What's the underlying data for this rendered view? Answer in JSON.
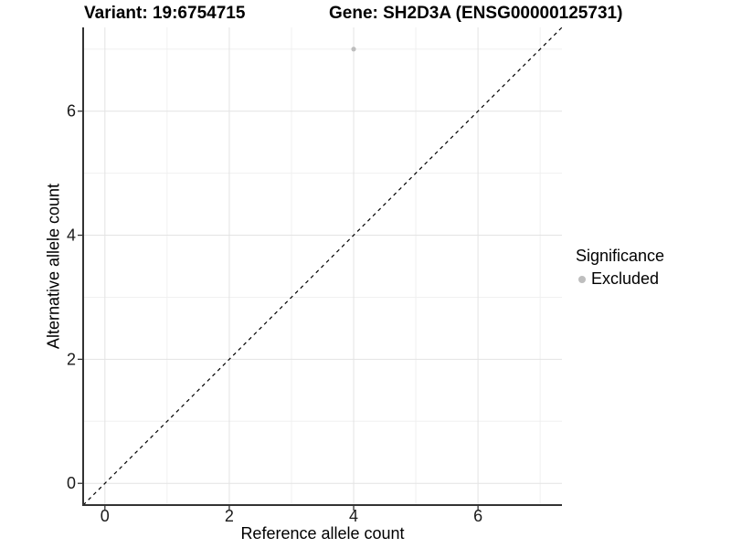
{
  "header": {
    "variant_title": "Variant: 19:6754715",
    "gene_title": "Gene: SH2D3A (ENSG00000125731)"
  },
  "chart_data": {
    "type": "scatter",
    "title": "Variant: 19:6754715   Gene: SH2D3A (ENSG00000125731)",
    "xlabel": "Reference allele count",
    "ylabel": "Alternative allele count",
    "xlim": [
      -0.35,
      7.35
    ],
    "ylim": [
      -0.35,
      7.35
    ],
    "x_ticks": [
      0,
      2,
      4,
      6
    ],
    "y_ticks": [
      0,
      2,
      4,
      6
    ],
    "x_minor_ticks": [
      1,
      3,
      5,
      7
    ],
    "y_minor_ticks": [
      1,
      3,
      5,
      7
    ],
    "grid": true,
    "points": [
      {
        "x": 4,
        "y": 7,
        "series": "Excluded"
      }
    ],
    "reference_line": {
      "slope": 1,
      "intercept": 0,
      "style": "dashed"
    },
    "legend": {
      "title": "Significance",
      "position": "right",
      "entries": [
        {
          "label": "Excluded",
          "color": "#bebebe",
          "marker": "circle"
        }
      ]
    },
    "colors": {
      "point": "#bebebe",
      "grid_major": "#e3e3e3",
      "grid_minor": "#f0f0f0",
      "axis_line": "#333333",
      "tick_mark": "#333333",
      "tick_label": "#1a1a1a",
      "reference_line": "#000000",
      "background": "#ffffff"
    }
  }
}
